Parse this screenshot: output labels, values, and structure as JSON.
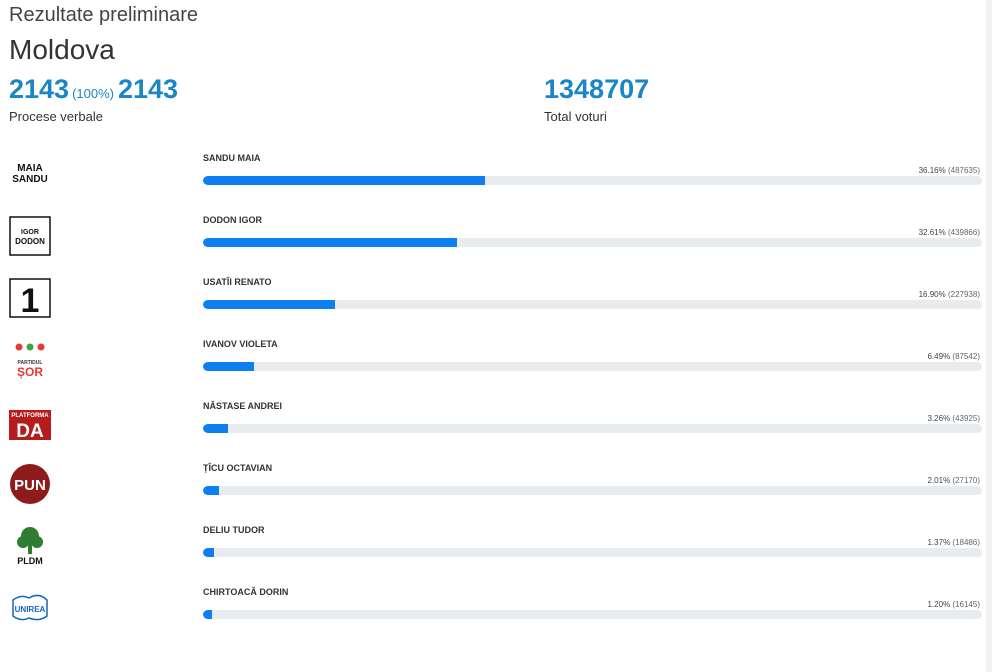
{
  "header": {
    "title": "Rezultate preliminare",
    "region": "Moldova"
  },
  "stats": {
    "protocols_counted": "2143",
    "protocols_pct": "(100%)",
    "protocols_total": "2143",
    "protocols_label": "Procese verbale",
    "total_votes": "1348707",
    "total_votes_label": "Total voturi"
  },
  "colors": {
    "accent": "#1a86c8",
    "bar_fill": "#0d7ff0",
    "bar_track": "#e9ecef"
  },
  "candidates": [
    {
      "name": "SANDU MAIA",
      "percent_label": "36.16%",
      "votes_label": "(487635)",
      "share": 36.16,
      "logo": "maia-sandu-logo",
      "logo_text": [
        "MAIA",
        "SANDU"
      ]
    },
    {
      "name": "DODON IGOR",
      "percent_label": "32.61%",
      "votes_label": "(439866)",
      "share": 32.61,
      "logo": "igor-dodon-logo",
      "logo_text": [
        "IGOR",
        "DODON"
      ]
    },
    {
      "name": "USATÎI RENATO",
      "percent_label": "16.90%",
      "votes_label": "(227938)",
      "share": 16.9,
      "logo": "partidul-nostru-logo",
      "logo_text": [
        "1"
      ]
    },
    {
      "name": "IVANOV VIOLETA",
      "percent_label": "6.49%",
      "votes_label": "(87542)",
      "share": 6.49,
      "logo": "partidul-sor-logo",
      "logo_text": [
        "PARTIDUL",
        "ȘOR"
      ]
    },
    {
      "name": "NĂSTASE ANDREI",
      "percent_label": "3.26%",
      "votes_label": "(43925)",
      "share": 3.26,
      "logo": "platforma-da-logo",
      "logo_text": [
        "PLATFORMA",
        "DA"
      ]
    },
    {
      "name": "ȚÎCU OCTAVIAN",
      "percent_label": "2.01%",
      "votes_label": "(27170)",
      "share": 2.01,
      "logo": "pun-logo",
      "logo_text": [
        "PUN"
      ]
    },
    {
      "name": "DELIU TUDOR",
      "percent_label": "1.37%",
      "votes_label": "(18486)",
      "share": 1.37,
      "logo": "pldm-logo",
      "logo_text": [
        "PLDM"
      ]
    },
    {
      "name": "CHIRTOACĂ DORIN",
      "percent_label": "1.20%",
      "votes_label": "(16145)",
      "share": 1.2,
      "logo": "unirea-logo",
      "logo_text": [
        "UNIREA"
      ]
    }
  ]
}
